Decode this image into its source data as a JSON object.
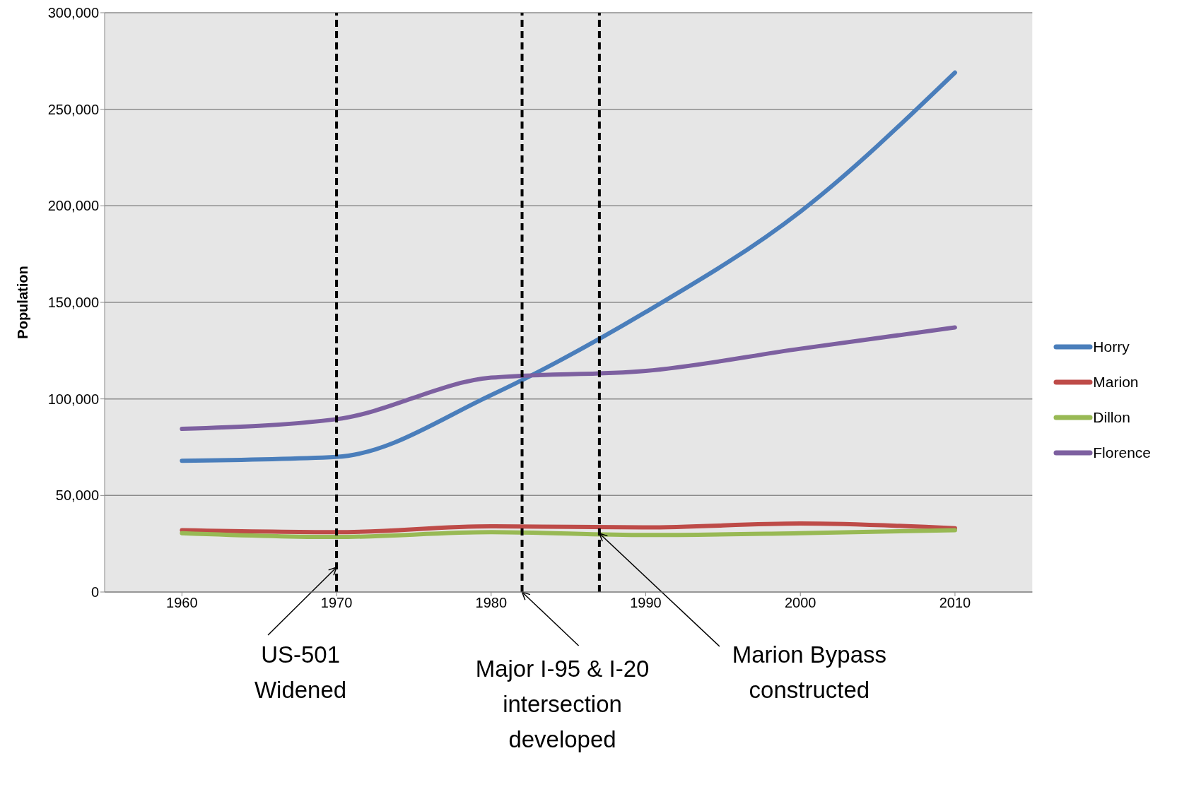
{
  "chart_data": {
    "type": "line",
    "ylabel": "Population",
    "x": [
      1960,
      1970,
      1980,
      1990,
      2000,
      2010
    ],
    "xlim": [
      1955,
      2015
    ],
    "xticks": [
      1960,
      1970,
      1980,
      1990,
      2000,
      2010
    ],
    "ylim": [
      0,
      300000
    ],
    "yticks": [
      {
        "value": 0,
        "label": "0"
      },
      {
        "value": 50000,
        "label": "50,000"
      },
      {
        "value": 100000,
        "label": "100,000"
      },
      {
        "value": 150000,
        "label": "150,000"
      },
      {
        "value": 200000,
        "label": "200,000"
      },
      {
        "value": 250000,
        "label": "250,000"
      },
      {
        "value": 300000,
        "label": "300,000"
      }
    ],
    "series": [
      {
        "name": "Horry",
        "color": "#4a7ebb",
        "values": [
          68000,
          70000,
          102000,
          145000,
          197000,
          269000
        ]
      },
      {
        "name": "Marion",
        "color": "#be4b48",
        "values": [
          32000,
          31000,
          34000,
          33500,
          35500,
          33000
        ]
      },
      {
        "name": "Dillon",
        "color": "#98b954",
        "values": [
          30500,
          28500,
          31000,
          29500,
          30500,
          32000
        ]
      },
      {
        "name": "Florence",
        "color": "#7d60a0",
        "values": [
          84500,
          89500,
          111000,
          114500,
          126000,
          137000
        ]
      }
    ],
    "ref_lines": [
      {
        "axis": "x",
        "value": 1970,
        "label": "US-501 Widened",
        "color": "#000000",
        "line_style": "dashed"
      },
      {
        "axis": "x",
        "value": 1982,
        "label": "Major I-95 & I-20 intersection developed",
        "color": "#000000",
        "line_style": "dashed"
      },
      {
        "axis": "x",
        "value": 1987,
        "label": "Marion Bypass constructed",
        "color": "#000000",
        "line_style": "dashed"
      }
    ],
    "grid": "y",
    "legend": "right",
    "marker": "none",
    "line_style": "solid"
  }
}
